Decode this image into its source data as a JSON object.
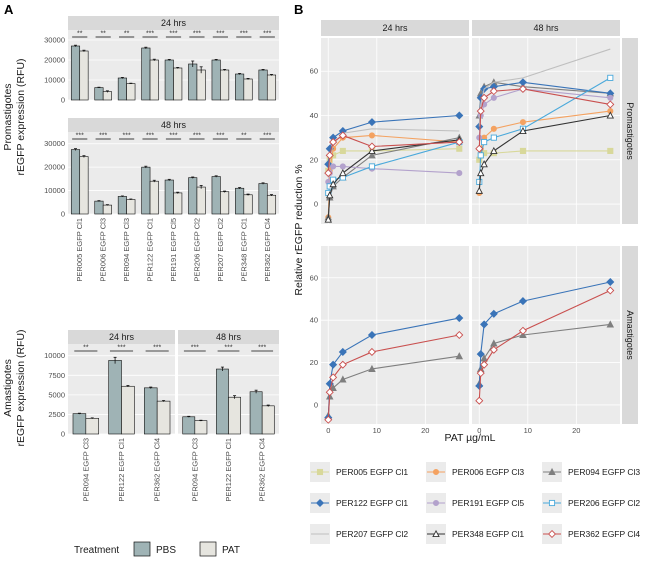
{
  "colors": {
    "PBS": "#9fb3b5",
    "PAT": "#e6e5df",
    "PER005 EGFP Cl1": "#d8d89a",
    "PER006 EGFP Cl3": "#f4a261",
    "PER094 EGFP Cl3": "#7f7f7f",
    "PER122 EGFP Cl1": "#3a74b8",
    "PER191 EGFP Cl5": "#b3a2cc",
    "PER206 EGFP Cl2": "#4aa9db",
    "PER207 EGFP Cl2": "#bfbfbf",
    "PER348 EGFP Cl1": "#333333",
    "PER362 EGFP Cl4": "#c9504f"
  },
  "panel_letters": [
    "A",
    "B"
  ],
  "chart_data": [
    {
      "id": "promastigotes",
      "type": "bar",
      "ylabel_lines": [
        "Promastigotes",
        "rEGFP expression (RFU)"
      ],
      "ylim": [
        0,
        35000
      ],
      "yticks": [
        0,
        10000,
        20000,
        30000
      ],
      "categories": [
        "PER005 EGFP Cl1",
        "PER006 EGFP Cl3",
        "PER094 EGFP Cl3",
        "PER122 EGFP Cl1",
        "PER191 EGFP Cl5",
        "PER206 EGFP Cl2",
        "PER207 EGFP Cl2",
        "PER348 EGFP Cl1",
        "PER362 EGFP Cl4"
      ],
      "facets": [
        {
          "strip": "24 hrs",
          "series": [
            {
              "name": "PBS",
              "values": [
                27000,
                6200,
                11000,
                26000,
                20000,
                18000,
                20000,
                13000,
                15000
              ],
              "err": [
                400,
                200,
                300,
                400,
                300,
                1500,
                300,
                300,
                300
              ]
            },
            {
              "name": "PAT",
              "values": [
                24500,
                4200,
                8200,
                20000,
                16000,
                15000,
                15000,
                10500,
                12500
              ],
              "err": [
                400,
                400,
                200,
                400,
                300,
                1600,
                300,
                300,
                300
              ]
            }
          ],
          "sig": [
            "**",
            "**",
            "**",
            "***",
            "***",
            "***",
            "***",
            "***",
            "***"
          ]
        },
        {
          "strip": "48 hrs",
          "series": [
            {
              "name": "PBS",
              "values": [
                27500,
                5500,
                7500,
                20000,
                14500,
                15500,
                16000,
                11000,
                13000
              ],
              "err": [
                400,
                200,
                200,
                400,
                300,
                300,
                300,
                300,
                300
              ]
            },
            {
              "name": "PAT",
              "values": [
                24500,
                3800,
                6200,
                14000,
                9000,
                11500,
                9500,
                8200,
                8000
              ],
              "err": [
                400,
                200,
                200,
                400,
                300,
                700,
                300,
                300,
                300
              ]
            }
          ],
          "sig": [
            "***",
            "***",
            "***",
            "***",
            "***",
            "***",
            "***",
            "**",
            "***"
          ]
        }
      ]
    },
    {
      "id": "amastigotes",
      "type": "bar",
      "ylabel_lines": [
        "Amastigotes",
        "rEGFP expression (RFU)"
      ],
      "ylim": [
        0,
        11500
      ],
      "yticks": [
        0,
        2500,
        5000,
        7500,
        10000
      ],
      "categories": [
        "PER094 EGFP Cl3",
        "PER122 EGFP Cl1",
        "PER362 EGFP Cl4"
      ],
      "facets": [
        {
          "strip": "24 hrs",
          "series": [
            {
              "name": "PBS",
              "values": [
                2600,
                9400,
                5900
              ],
              "err": [
                60,
                400,
                100
              ]
            },
            {
              "name": "PAT",
              "values": [
                2000,
                6100,
                4200
              ],
              "err": [
                60,
                100,
                80
              ]
            }
          ],
          "sig": [
            "**",
            "***",
            "***"
          ]
        },
        {
          "strip": "48 hrs",
          "series": [
            {
              "name": "PBS",
              "values": [
                2200,
                8300,
                5400
              ],
              "err": [
                60,
                250,
                200
              ]
            },
            {
              "name": "PAT",
              "values": [
                1700,
                4700,
                3600
              ],
              "err": [
                60,
                200,
                100
              ]
            }
          ],
          "sig": [
            "***",
            "***",
            "***"
          ]
        }
      ]
    },
    {
      "id": "reduction",
      "type": "line",
      "xlabel": "PAT µg/mL",
      "ylabel": "Relative rEGFP reduction %",
      "xlim": [
        -1.5,
        29
      ],
      "ylim": [
        -9,
        75
      ],
      "xticks": [
        0,
        10,
        20
      ],
      "yticks": [
        0,
        20,
        40,
        60
      ],
      "x": [
        0,
        0.3,
        1,
        3,
        9,
        27
      ],
      "col_strips": [
        "24 hrs",
        "48 hrs"
      ],
      "row_strips": [
        "Promastigotes",
        "Amastigotes"
      ],
      "markers": {
        "PER005 EGFP Cl1": "square",
        "PER006 EGFP Cl3": "circle",
        "PER094 EGFP Cl3": "triangle",
        "PER122 EGFP Cl1": "diamond",
        "PER191 EGFP Cl5": "circle",
        "PER206 EGFP Cl2": "square-open",
        "PER207 EGFP Cl2": "none",
        "PER348 EGFP Cl1": "triangle-open",
        "PER362 EGFP Cl4": "diamond-open"
      },
      "panels": [
        {
          "row": 0,
          "col": 0,
          "series": [
            {
              "name": "PER005 EGFP Cl1",
              "values": [
                15,
                20,
                22,
                24,
                24,
                25
              ]
            },
            {
              "name": "PER006 EGFP Cl3",
              "values": [
                -6,
                15,
                25,
                30,
                31,
                28
              ]
            },
            {
              "name": "PER094 EGFP Cl3",
              "values": [
                -6,
                3,
                8,
                12,
                22,
                30
              ]
            },
            {
              "name": "PER122 EGFP Cl1",
              "values": [
                18,
                25,
                30,
                33,
                37,
                40
              ]
            },
            {
              "name": "PER191 EGFP Cl5",
              "values": [
                10,
                14,
                17,
                17,
                16,
                14
              ]
            },
            {
              "name": "PER206 EGFP Cl2",
              "values": [
                5,
                8,
                11,
                12,
                17,
                28
              ]
            },
            {
              "name": "PER207 EGFP Cl2",
              "values": [
                12,
                20,
                27,
                32,
                34,
                33
              ]
            },
            {
              "name": "PER348 EGFP Cl1",
              "values": [
                -7,
                4,
                9,
                14,
                24,
                29
              ]
            },
            {
              "name": "PER362 EGFP Cl4",
              "values": [
                14,
                22,
                28,
                31,
                26,
                28
              ]
            }
          ]
        },
        {
          "row": 0,
          "col": 1,
          "series": [
            {
              "name": "PER005 EGFP Cl1",
              "values": [
                20,
                22,
                23,
                23,
                24,
                24
              ]
            },
            {
              "name": "PER006 EGFP Cl3",
              "values": [
                5,
                25,
                30,
                34,
                37,
                42
              ]
            },
            {
              "name": "PER094 EGFP Cl3",
              "values": [
                40,
                50,
                53,
                55,
                53,
                50
              ]
            },
            {
              "name": "PER122 EGFP Cl1",
              "values": [
                35,
                48,
                52,
                53,
                55,
                50
              ]
            },
            {
              "name": "PER191 EGFP Cl5",
              "values": [
                30,
                40,
                45,
                48,
                52,
                48
              ]
            },
            {
              "name": "PER206 EGFP Cl2",
              "values": [
                10,
                22,
                28,
                30,
                34,
                57
              ]
            },
            {
              "name": "PER207 EGFP Cl2",
              "values": [
                35,
                45,
                52,
                55,
                57,
                70
              ]
            },
            {
              "name": "PER348 EGFP Cl1",
              "values": [
                6,
                14,
                18,
                24,
                33,
                40
              ]
            },
            {
              "name": "PER362 EGFP Cl4",
              "values": [
                25,
                42,
                48,
                51,
                52,
                45
              ]
            }
          ]
        },
        {
          "row": 1,
          "col": 0,
          "series": [
            {
              "name": "PER094 EGFP Cl3",
              "values": [
                -5,
                4,
                8,
                12,
                17,
                23
              ]
            },
            {
              "name": "PER122 EGFP Cl1",
              "values": [
                -6,
                10,
                19,
                25,
                33,
                41
              ]
            },
            {
              "name": "PER362 EGFP Cl4",
              "values": [
                -7,
                6,
                13,
                19,
                25,
                33
              ]
            }
          ]
        },
        {
          "row": 1,
          "col": 1,
          "series": [
            {
              "name": "PER094 EGFP Cl3",
              "values": [
                10,
                17,
                22,
                29,
                33,
                38
              ]
            },
            {
              "name": "PER122 EGFP Cl1",
              "values": [
                9,
                24,
                38,
                43,
                49,
                58
              ]
            },
            {
              "name": "PER362 EGFP Cl4",
              "values": [
                2,
                15,
                19,
                26,
                35,
                54
              ]
            }
          ]
        }
      ],
      "legend": [
        "PER005 EGFP Cl1",
        "PER006 EGFP Cl3",
        "PER094 EGFP Cl3",
        "PER122 EGFP Cl1",
        "PER191 EGFP Cl5",
        "PER206 EGFP Cl2",
        "PER207 EGFP Cl2",
        "PER348 EGFP Cl1",
        "PER362 EGFP Cl4"
      ]
    }
  ],
  "bar_legend": {
    "title": "Treatment",
    "items": [
      "PBS",
      "PAT"
    ]
  }
}
